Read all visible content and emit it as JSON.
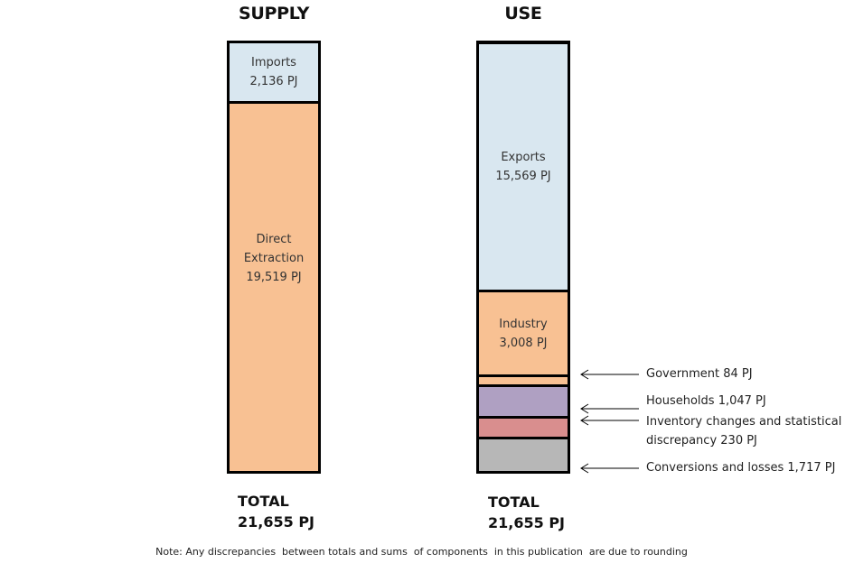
{
  "chart_data": {
    "type": "bar",
    "stacked": true,
    "unit": "PJ",
    "columns": [
      {
        "title": "SUPPLY",
        "segments": [
          {
            "label": "Imports",
            "value": 2136,
            "value_text": "2,136 PJ",
            "color": "#D9E7F0"
          },
          {
            "label": "Direct Extraction",
            "value": 19519,
            "value_text": "19,519 PJ",
            "color": "#F8C193"
          }
        ],
        "total_label": "TOTAL",
        "total_text": "21,655 PJ"
      },
      {
        "title": "USE",
        "segments": [
          {
            "label": "Exports",
            "value": 15569,
            "value_text": "15,569 PJ",
            "color": "#D9E7F0"
          },
          {
            "label": "Industry",
            "value": 3008,
            "value_text": "3,008 PJ",
            "color": "#F8C193"
          },
          {
            "label": "Government 84 PJ",
            "value": 84,
            "color": "#F8C193"
          },
          {
            "label": "Households 1,047 PJ",
            "value": 1047,
            "color": "#AFA0C2"
          },
          {
            "label": "Inventory changes and statistical discrepancy 230 PJ",
            "line1": "Inventory changes and statistical",
            "line2": "discrepancy 230 PJ",
            "value": 230,
            "color": "#D98E8E"
          },
          {
            "label": "Conversions and losses 1,717 PJ",
            "value": 1717,
            "color": "#B7B7B7"
          }
        ],
        "total_label": "TOTAL",
        "total_text": "21,655 PJ"
      }
    ]
  },
  "note": "Note: Any discrepancies  between totals and sums  of components  in this publication  are due to rounding"
}
